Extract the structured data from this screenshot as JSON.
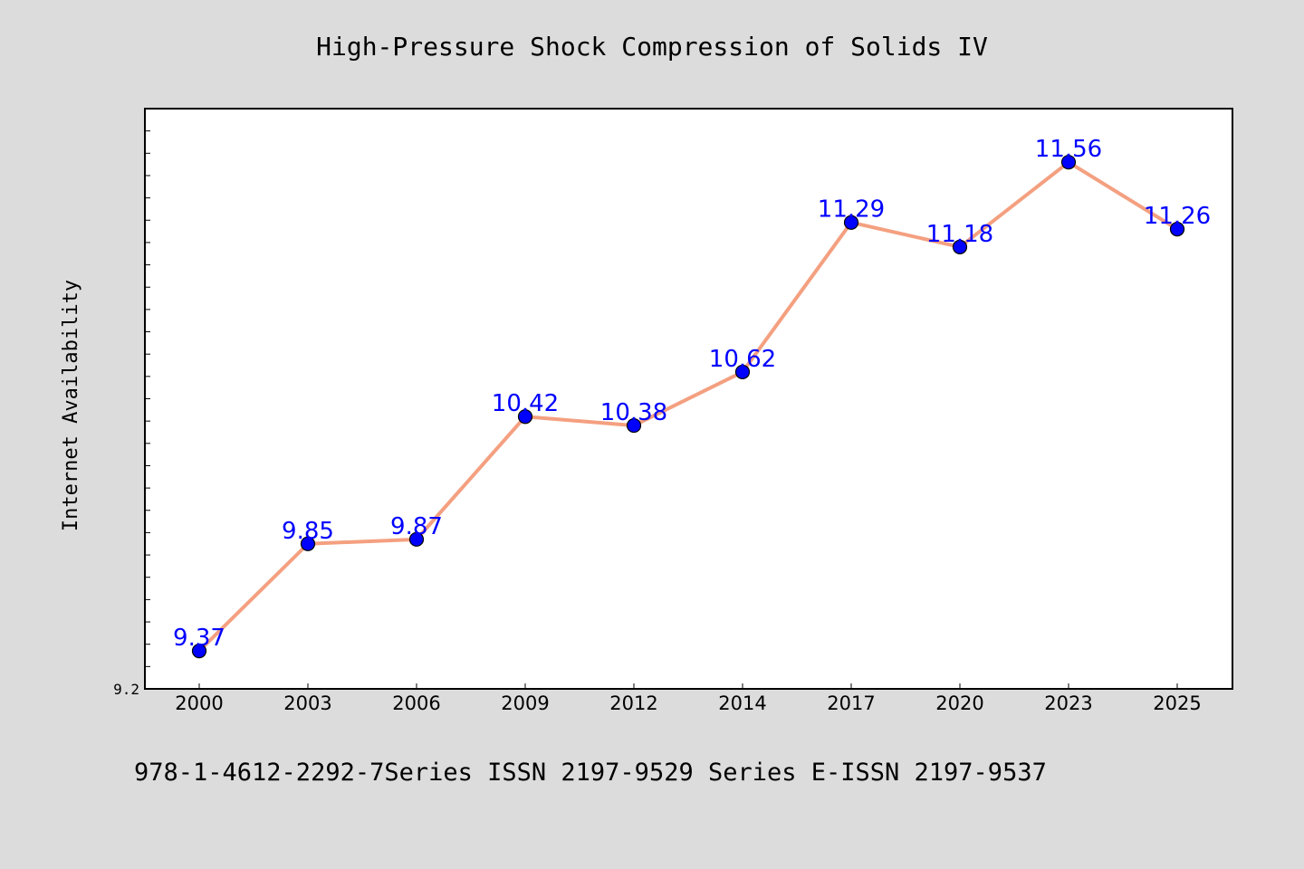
{
  "chart_data": {
    "type": "line",
    "title": "High-Pressure Shock Compression of Solids IV",
    "footer": "978-1-4612-2292-7Series ISSN 2197-9529 Series E-ISSN 2197-9537",
    "xlabel": "",
    "ylabel": "Internet Availability",
    "categories": [
      "2000",
      "2003",
      "2006",
      "2009",
      "2012",
      "2014",
      "2017",
      "2020",
      "2023",
      "2025"
    ],
    "series": [
      {
        "values": [
          9.37,
          9.85,
          9.87,
          10.42,
          10.38,
          10.62,
          11.29,
          11.18,
          11.56,
          11.26
        ]
      }
    ],
    "data_labels": [
      "9.37",
      "9.85",
      "9.87",
      "10.42",
      "10.38",
      "10.62",
      "11.29",
      "11.18",
      "11.56",
      "11.26"
    ],
    "ylim": [
      9.2,
      11.8
    ],
    "y_tick_labels": [
      "9.2"
    ],
    "y_minor_tick_step": 0.1,
    "grid": false,
    "legend": "none",
    "colors": {
      "background": "#dcdcdc",
      "plot_background": "#ffffff",
      "line": "#f4a080",
      "marker": "#0000ff",
      "label": "#0000ff",
      "text": "#000000"
    }
  }
}
